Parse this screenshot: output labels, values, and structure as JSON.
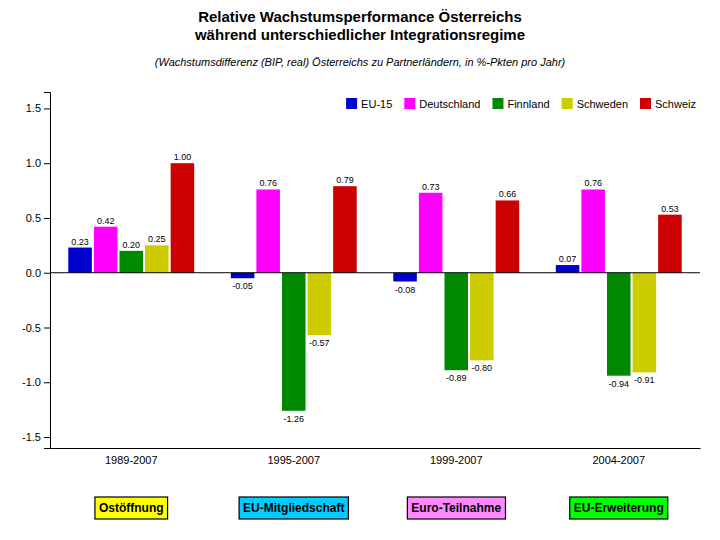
{
  "chart_data": {
    "type": "bar",
    "title": "Relative Wachstumsperformance Österreichs\nwährend unterschiedlicher Integrationsregime",
    "subtitle": "(Wachstumsdifferenz (BIP, real) Österreichs zu Partnerländern, in %-Pkten pro Jahr)",
    "categories": [
      "1989-2007",
      "1995-2007",
      "1999-2007",
      "2004-2007"
    ],
    "series": [
      {
        "name": "EU-15",
        "color": "#0000CC",
        "values": [
          0.23,
          -0.05,
          -0.08,
          0.07
        ],
        "value_labels": [
          "0.23",
          "-0.05",
          "-0.08",
          "0.07"
        ]
      },
      {
        "name": "Deutschland",
        "color": "#FF00FF",
        "values": [
          0.42,
          0.76,
          0.73,
          0.76
        ],
        "value_labels": [
          "0.42",
          "0.76",
          "0.73",
          "0.76"
        ]
      },
      {
        "name": "Finnland",
        "color": "#008800",
        "values": [
          0.2,
          -1.26,
          -0.89,
          -0.94
        ],
        "value_labels": [
          "0.20",
          "-1.26",
          "-0.89",
          "-0.94"
        ]
      },
      {
        "name": "Schweden",
        "color": "#CCCC00",
        "values": [
          0.25,
          -0.57,
          -0.8,
          -0.91
        ],
        "value_labels": [
          "0.25",
          "-0.57",
          "-0.80",
          "-0.91"
        ]
      },
      {
        "name": "Schweiz",
        "color": "#CC0000",
        "values": [
          1.0,
          0.79,
          0.66,
          0.53
        ],
        "value_labels": [
          "1.00",
          "0.79",
          "0.66",
          "0.53"
        ]
      }
    ],
    "annotations": [
      {
        "text": "Ostöffnung",
        "color": "#FFFF00"
      },
      {
        "text": "EU-Mitgliedschaft",
        "color": "#00CCFF"
      },
      {
        "text": "Euro-Teilnahme",
        "color": "#FF88FF"
      },
      {
        "text": "EU-Erweiterung",
        "color": "#00FF00"
      }
    ],
    "ylim": [
      -1.6,
      1.65
    ],
    "yticks": [
      -1.5,
      {
        "value": -1.0,
        "label": "-1.0"
      },
      -0.5,
      {
        "value": 0.0,
        "label": "0.0"
      },
      0.5,
      {
        "value": 1.0,
        "label": "1.0"
      },
      1.5
    ],
    "data_labels": true,
    "legend": "upper right",
    "grid": false
  }
}
